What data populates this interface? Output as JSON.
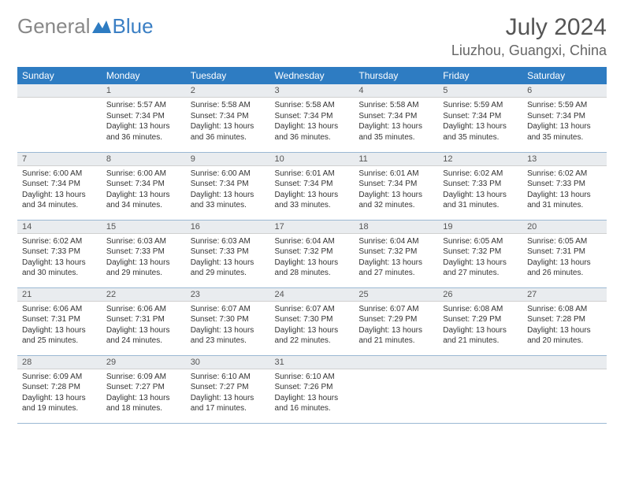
{
  "brand": {
    "part1": "General",
    "part2": "Blue"
  },
  "title": "July 2024",
  "location": "Liuzhou, Guangxi, China",
  "colors": {
    "header_bg": "#2e7cc2",
    "header_fg": "#ffffff",
    "daynum_bg": "#e9ecef",
    "border": "#9bb8d3",
    "brand_gray": "#888888",
    "brand_blue": "#3b7fc4"
  },
  "days_of_week": [
    "Sunday",
    "Monday",
    "Tuesday",
    "Wednesday",
    "Thursday",
    "Friday",
    "Saturday"
  ],
  "weeks": [
    [
      null,
      {
        "n": "1",
        "sunrise": "Sunrise: 5:57 AM",
        "sunset": "Sunset: 7:34 PM",
        "dl1": "Daylight: 13 hours",
        "dl2": "and 36 minutes."
      },
      {
        "n": "2",
        "sunrise": "Sunrise: 5:58 AM",
        "sunset": "Sunset: 7:34 PM",
        "dl1": "Daylight: 13 hours",
        "dl2": "and 36 minutes."
      },
      {
        "n": "3",
        "sunrise": "Sunrise: 5:58 AM",
        "sunset": "Sunset: 7:34 PM",
        "dl1": "Daylight: 13 hours",
        "dl2": "and 36 minutes."
      },
      {
        "n": "4",
        "sunrise": "Sunrise: 5:58 AM",
        "sunset": "Sunset: 7:34 PM",
        "dl1": "Daylight: 13 hours",
        "dl2": "and 35 minutes."
      },
      {
        "n": "5",
        "sunrise": "Sunrise: 5:59 AM",
        "sunset": "Sunset: 7:34 PM",
        "dl1": "Daylight: 13 hours",
        "dl2": "and 35 minutes."
      },
      {
        "n": "6",
        "sunrise": "Sunrise: 5:59 AM",
        "sunset": "Sunset: 7:34 PM",
        "dl1": "Daylight: 13 hours",
        "dl2": "and 35 minutes."
      }
    ],
    [
      {
        "n": "7",
        "sunrise": "Sunrise: 6:00 AM",
        "sunset": "Sunset: 7:34 PM",
        "dl1": "Daylight: 13 hours",
        "dl2": "and 34 minutes."
      },
      {
        "n": "8",
        "sunrise": "Sunrise: 6:00 AM",
        "sunset": "Sunset: 7:34 PM",
        "dl1": "Daylight: 13 hours",
        "dl2": "and 34 minutes."
      },
      {
        "n": "9",
        "sunrise": "Sunrise: 6:00 AM",
        "sunset": "Sunset: 7:34 PM",
        "dl1": "Daylight: 13 hours",
        "dl2": "and 33 minutes."
      },
      {
        "n": "10",
        "sunrise": "Sunrise: 6:01 AM",
        "sunset": "Sunset: 7:34 PM",
        "dl1": "Daylight: 13 hours",
        "dl2": "and 33 minutes."
      },
      {
        "n": "11",
        "sunrise": "Sunrise: 6:01 AM",
        "sunset": "Sunset: 7:34 PM",
        "dl1": "Daylight: 13 hours",
        "dl2": "and 32 minutes."
      },
      {
        "n": "12",
        "sunrise": "Sunrise: 6:02 AM",
        "sunset": "Sunset: 7:33 PM",
        "dl1": "Daylight: 13 hours",
        "dl2": "and 31 minutes."
      },
      {
        "n": "13",
        "sunrise": "Sunrise: 6:02 AM",
        "sunset": "Sunset: 7:33 PM",
        "dl1": "Daylight: 13 hours",
        "dl2": "and 31 minutes."
      }
    ],
    [
      {
        "n": "14",
        "sunrise": "Sunrise: 6:02 AM",
        "sunset": "Sunset: 7:33 PM",
        "dl1": "Daylight: 13 hours",
        "dl2": "and 30 minutes."
      },
      {
        "n": "15",
        "sunrise": "Sunrise: 6:03 AM",
        "sunset": "Sunset: 7:33 PM",
        "dl1": "Daylight: 13 hours",
        "dl2": "and 29 minutes."
      },
      {
        "n": "16",
        "sunrise": "Sunrise: 6:03 AM",
        "sunset": "Sunset: 7:33 PM",
        "dl1": "Daylight: 13 hours",
        "dl2": "and 29 minutes."
      },
      {
        "n": "17",
        "sunrise": "Sunrise: 6:04 AM",
        "sunset": "Sunset: 7:32 PM",
        "dl1": "Daylight: 13 hours",
        "dl2": "and 28 minutes."
      },
      {
        "n": "18",
        "sunrise": "Sunrise: 6:04 AM",
        "sunset": "Sunset: 7:32 PM",
        "dl1": "Daylight: 13 hours",
        "dl2": "and 27 minutes."
      },
      {
        "n": "19",
        "sunrise": "Sunrise: 6:05 AM",
        "sunset": "Sunset: 7:32 PM",
        "dl1": "Daylight: 13 hours",
        "dl2": "and 27 minutes."
      },
      {
        "n": "20",
        "sunrise": "Sunrise: 6:05 AM",
        "sunset": "Sunset: 7:31 PM",
        "dl1": "Daylight: 13 hours",
        "dl2": "and 26 minutes."
      }
    ],
    [
      {
        "n": "21",
        "sunrise": "Sunrise: 6:06 AM",
        "sunset": "Sunset: 7:31 PM",
        "dl1": "Daylight: 13 hours",
        "dl2": "and 25 minutes."
      },
      {
        "n": "22",
        "sunrise": "Sunrise: 6:06 AM",
        "sunset": "Sunset: 7:31 PM",
        "dl1": "Daylight: 13 hours",
        "dl2": "and 24 minutes."
      },
      {
        "n": "23",
        "sunrise": "Sunrise: 6:07 AM",
        "sunset": "Sunset: 7:30 PM",
        "dl1": "Daylight: 13 hours",
        "dl2": "and 23 minutes."
      },
      {
        "n": "24",
        "sunrise": "Sunrise: 6:07 AM",
        "sunset": "Sunset: 7:30 PM",
        "dl1": "Daylight: 13 hours",
        "dl2": "and 22 minutes."
      },
      {
        "n": "25",
        "sunrise": "Sunrise: 6:07 AM",
        "sunset": "Sunset: 7:29 PM",
        "dl1": "Daylight: 13 hours",
        "dl2": "and 21 minutes."
      },
      {
        "n": "26",
        "sunrise": "Sunrise: 6:08 AM",
        "sunset": "Sunset: 7:29 PM",
        "dl1": "Daylight: 13 hours",
        "dl2": "and 21 minutes."
      },
      {
        "n": "27",
        "sunrise": "Sunrise: 6:08 AM",
        "sunset": "Sunset: 7:28 PM",
        "dl1": "Daylight: 13 hours",
        "dl2": "and 20 minutes."
      }
    ],
    [
      {
        "n": "28",
        "sunrise": "Sunrise: 6:09 AM",
        "sunset": "Sunset: 7:28 PM",
        "dl1": "Daylight: 13 hours",
        "dl2": "and 19 minutes."
      },
      {
        "n": "29",
        "sunrise": "Sunrise: 6:09 AM",
        "sunset": "Sunset: 7:27 PM",
        "dl1": "Daylight: 13 hours",
        "dl2": "and 18 minutes."
      },
      {
        "n": "30",
        "sunrise": "Sunrise: 6:10 AM",
        "sunset": "Sunset: 7:27 PM",
        "dl1": "Daylight: 13 hours",
        "dl2": "and 17 minutes."
      },
      {
        "n": "31",
        "sunrise": "Sunrise: 6:10 AM",
        "sunset": "Sunset: 7:26 PM",
        "dl1": "Daylight: 13 hours",
        "dl2": "and 16 minutes."
      },
      null,
      null,
      null
    ]
  ]
}
